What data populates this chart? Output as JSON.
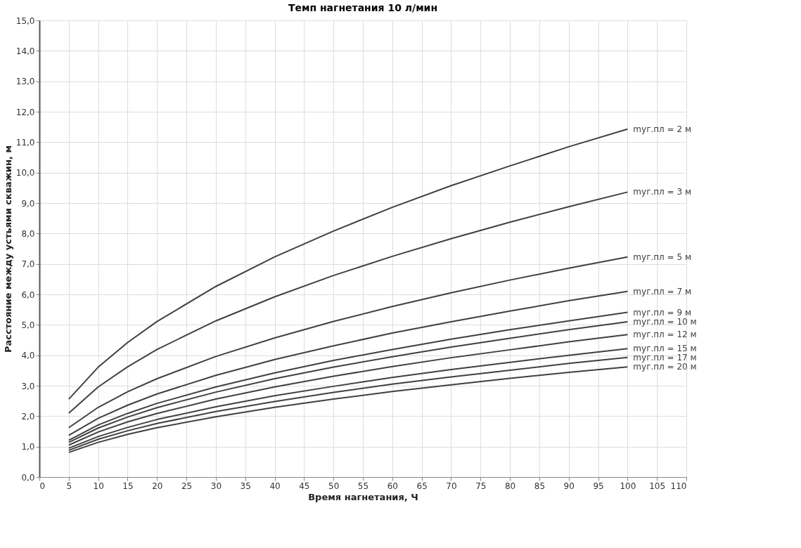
{
  "chart_data": {
    "type": "line",
    "title": "Темп нагнетания 10 л/мин",
    "xlabel": "Время нагнетания, Ч",
    "ylabel": "Расстояние между устьями скважин, м",
    "x": [
      5,
      10,
      15,
      20,
      30,
      40,
      50,
      60,
      70,
      80,
      90,
      100
    ],
    "xlim": [
      0,
      110
    ],
    "xticks": [
      0,
      5,
      10,
      15,
      20,
      25,
      30,
      35,
      40,
      45,
      50,
      55,
      60,
      65,
      70,
      75,
      80,
      85,
      90,
      95,
      100,
      105,
      110
    ],
    "ylim": [
      0,
      15
    ],
    "yticks": [
      {
        "value": 0,
        "label": "0,0"
      },
      {
        "value": 1,
        "label": "1,0"
      },
      {
        "value": 2,
        "label": "2,0"
      },
      {
        "value": 3,
        "label": "3,0"
      },
      {
        "value": 4,
        "label": "4,0"
      },
      {
        "value": 5,
        "label": "5,0"
      },
      {
        "value": 6,
        "label": "6,0"
      },
      {
        "value": 7,
        "label": "7,0"
      },
      {
        "value": 8,
        "label": "8,0"
      },
      {
        "value": 9,
        "label": "9,0"
      },
      {
        "value": 10,
        "label": "10,0"
      },
      {
        "value": 11,
        "label": "11,0"
      },
      {
        "value": 12,
        "label": "12,0"
      },
      {
        "value": 13,
        "label": "13,0"
      },
      {
        "value": 14,
        "label": "14,0"
      },
      {
        "value": 15,
        "label": "15,0"
      }
    ],
    "grid": true,
    "marker": "none",
    "line_style": "solid",
    "series": [
      {
        "name": "mуг.пл = 2 м",
        "color": "#404040",
        "values": [
          2.56,
          3.61,
          4.42,
          5.11,
          6.26,
          7.23,
          8.08,
          8.86,
          9.57,
          10.22,
          10.85,
          11.43
        ]
      },
      {
        "name": "mуг.пл = 3 м",
        "color": "#404040",
        "values": [
          2.1,
          2.96,
          3.62,
          4.19,
          5.13,
          5.92,
          6.62,
          7.25,
          7.83,
          8.37,
          8.88,
          9.36
        ]
      },
      {
        "name": "mуг.пл = 5 м",
        "color": "#404040",
        "values": [
          1.62,
          2.29,
          2.8,
          3.23,
          3.96,
          4.57,
          5.11,
          5.6,
          6.05,
          6.47,
          6.86,
          7.23
        ]
      },
      {
        "name": "mуг.пл = 7 м",
        "color": "#404040",
        "values": [
          1.37,
          1.93,
          2.36,
          2.73,
          3.34,
          3.86,
          4.31,
          4.73,
          5.1,
          5.45,
          5.79,
          6.1
        ]
      },
      {
        "name": "mуг.пл = 9 м",
        "color": "#404040",
        "values": [
          1.21,
          1.71,
          2.09,
          2.42,
          2.96,
          3.42,
          3.83,
          4.19,
          4.53,
          4.84,
          5.13,
          5.41
        ]
      },
      {
        "name": "mуг.пл = 10 м",
        "color": "#404040",
        "values": [
          1.14,
          1.61,
          1.97,
          2.28,
          2.79,
          3.23,
          3.61,
          3.95,
          4.27,
          4.56,
          4.84,
          5.1
        ]
      },
      {
        "name": "mуг.пл = 12 м",
        "color": "#404040",
        "values": [
          1.05,
          1.48,
          1.81,
          2.09,
          2.56,
          2.96,
          3.31,
          3.63,
          3.92,
          4.18,
          4.44,
          4.68
        ]
      },
      {
        "name": "mуг.пл = 15 м",
        "color": "#404040",
        "values": [
          0.95,
          1.33,
          1.63,
          1.89,
          2.31,
          2.67,
          2.98,
          3.27,
          3.53,
          3.77,
          4.0,
          4.22
        ]
      },
      {
        "name": "mуг.пл = 17 м",
        "color": "#404040",
        "values": [
          0.88,
          1.24,
          1.52,
          1.76,
          2.15,
          2.48,
          2.78,
          3.05,
          3.29,
          3.51,
          3.73,
          3.93
        ]
      },
      {
        "name": "mуг.пл = 20 м",
        "color": "#404040",
        "values": [
          0.81,
          1.14,
          1.4,
          1.62,
          1.98,
          2.29,
          2.56,
          2.81,
          3.03,
          3.24,
          3.44,
          3.62
        ]
      }
    ]
  }
}
